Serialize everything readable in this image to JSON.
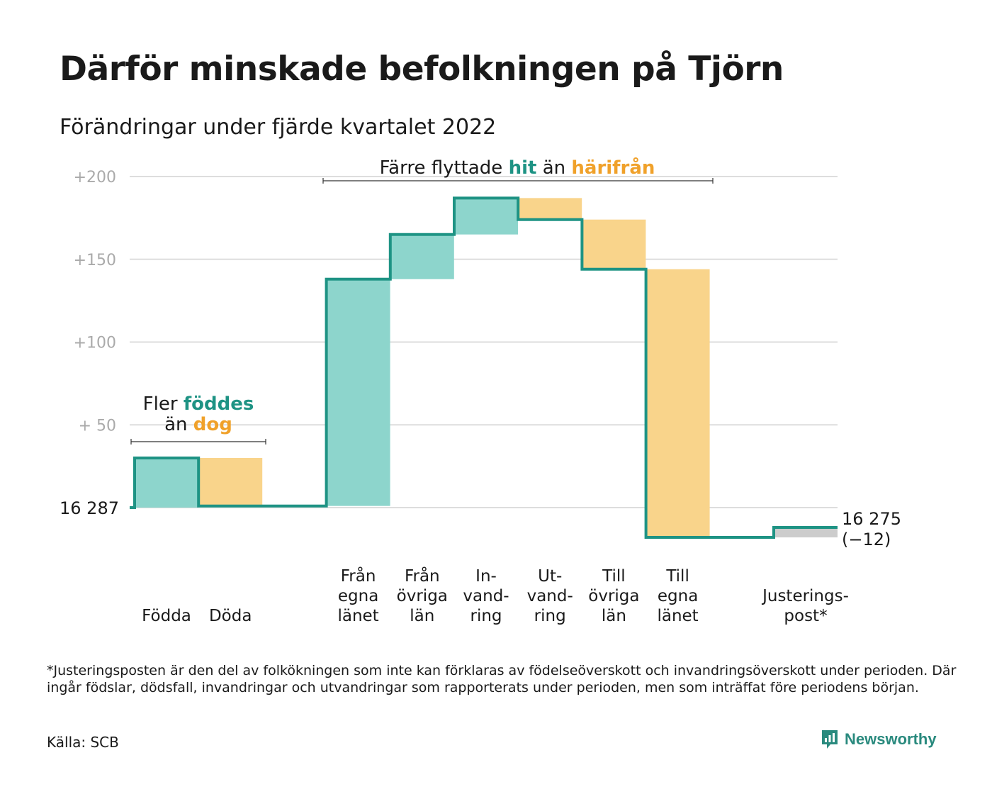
{
  "title": "Därför minskade befolkningen på Tjörn",
  "subtitle": "Förändringar under fjärde kvartalet 2022",
  "colors": {
    "increase": "#8dd5cc",
    "decrease": "#f9d48b",
    "adjustment": "#cccccc",
    "line": "#1e9384",
    "teal_text": "#1e9384",
    "orange_text": "#f0a12a",
    "grid": "#dddddd",
    "tick": "#aaaaaa"
  },
  "chart_data": {
    "type": "bar",
    "subtype": "waterfall",
    "ylim": [
      -23,
      200
    ],
    "yticks": [
      {
        "value": 200,
        "label": "+200"
      },
      {
        "value": 150,
        "label": "+150"
      },
      {
        "value": 100,
        "label": "+100"
      },
      {
        "value": 50,
        "label": "+ 50"
      }
    ],
    "start_label": "16 287",
    "end_label": [
      "16 275",
      "(−12)"
    ],
    "bars": [
      {
        "category": [
          "Födda"
        ],
        "from": 0,
        "to": 30,
        "kind": "increase"
      },
      {
        "category": [
          "Döda"
        ],
        "from": 30,
        "to": 1,
        "kind": "decrease"
      },
      {
        "category": [],
        "from": 1,
        "to": 1,
        "kind": "none"
      },
      {
        "category": [
          "Från",
          "egna",
          "länet"
        ],
        "from": 1,
        "to": 138,
        "kind": "increase"
      },
      {
        "category": [
          "Från",
          "övriga",
          "län"
        ],
        "from": 138,
        "to": 165,
        "kind": "increase"
      },
      {
        "category": [
          "In-",
          "vand-",
          "ring"
        ],
        "from": 165,
        "to": 187,
        "kind": "increase"
      },
      {
        "category": [
          "Ut-",
          "vand-",
          "ring"
        ],
        "from": 187,
        "to": 174,
        "kind": "decrease"
      },
      {
        "category": [
          "Till",
          "övriga",
          "län"
        ],
        "from": 174,
        "to": 144,
        "kind": "decrease"
      },
      {
        "category": [
          "Till",
          "egna",
          "länet"
        ],
        "from": 144,
        "to": -18,
        "kind": "decrease"
      },
      {
        "category": [],
        "from": -18,
        "to": -18,
        "kind": "none"
      },
      {
        "category": [
          "Justerings-",
          "post*"
        ],
        "from": -18,
        "to": -12,
        "kind": "adjustment"
      }
    ],
    "annotations": {
      "births": {
        "line1_plain": "Fler ",
        "line1_teal": "föddes",
        "line2_plain": "än ",
        "line2_orange": "dog"
      },
      "migration": {
        "plain1": "Färre flyttade ",
        "teal": "hit",
        "plain2": " än ",
        "orange": "härifrån"
      }
    }
  },
  "footnote": "*Justeringsposten är den del av folkökningen som inte kan förklaras av födelseöverskott och invandringsöverskott under perioden. Där ingår födslar, dödsfall, invandringar och utvandringar som rapporterats under perioden, men som inträffat före periodens början.",
  "source": "Källa: SCB",
  "brand": {
    "name": "Newsworthy",
    "icon": "newsworthy-logo-icon"
  }
}
